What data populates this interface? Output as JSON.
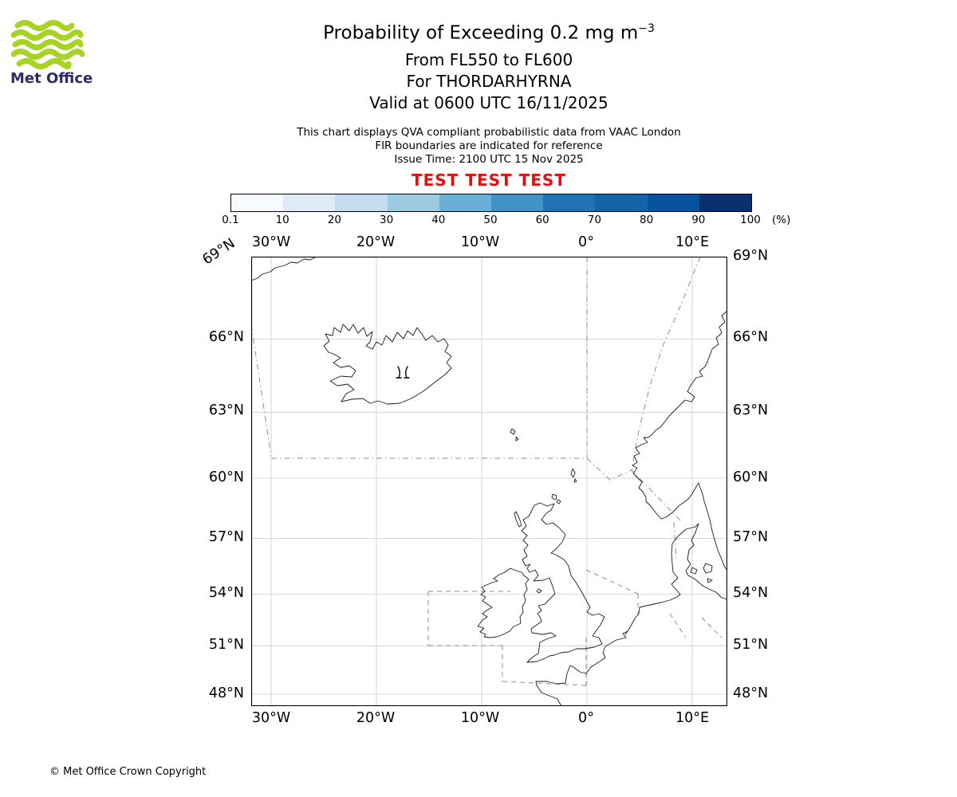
{
  "logo": {
    "brand": "Met Office",
    "wave_color": "#a6d324",
    "text_color": "#2b2a66"
  },
  "header": {
    "title_main": "Probability of Exceeding 0.2 mg m",
    "title_sup": "−3",
    "subtitle1": "From FL550 to FL600",
    "subtitle2": "For THORDARHYRNA",
    "subtitle3": "Valid at 0600 UTC 16/11/2025"
  },
  "notes": {
    "line1": "This chart displays QVA compliant probabilistic data from VAAC London",
    "line2": "FIR boundaries are indicated for reference",
    "line3": "Issue Time: 2100 UTC 15 Nov 2025"
  },
  "test_banner": {
    "text": "TEST TEST TEST",
    "color": "#e01010"
  },
  "colorbar": {
    "tick_labels": [
      "0.1",
      "10",
      "20",
      "30",
      "40",
      "50",
      "60",
      "70",
      "80",
      "90",
      "100"
    ],
    "unit": "(%)",
    "colors": [
      "#f7fbff",
      "#deebf7",
      "#c6dbef",
      "#9ecae1",
      "#6baed6",
      "#4292c6",
      "#2171b5",
      "#1563a8",
      "#08519c",
      "#08306b"
    ]
  },
  "map": {
    "lon_labels": [
      "30°W",
      "20°W",
      "10°W",
      "0°",
      "10°E"
    ],
    "lat_labels": [
      "69°N",
      "66°N",
      "63°N",
      "60°N",
      "57°N",
      "54°N",
      "51°N",
      "48°N"
    ]
  },
  "footer": {
    "copyright": "© Met Office Crown Copyright"
  }
}
